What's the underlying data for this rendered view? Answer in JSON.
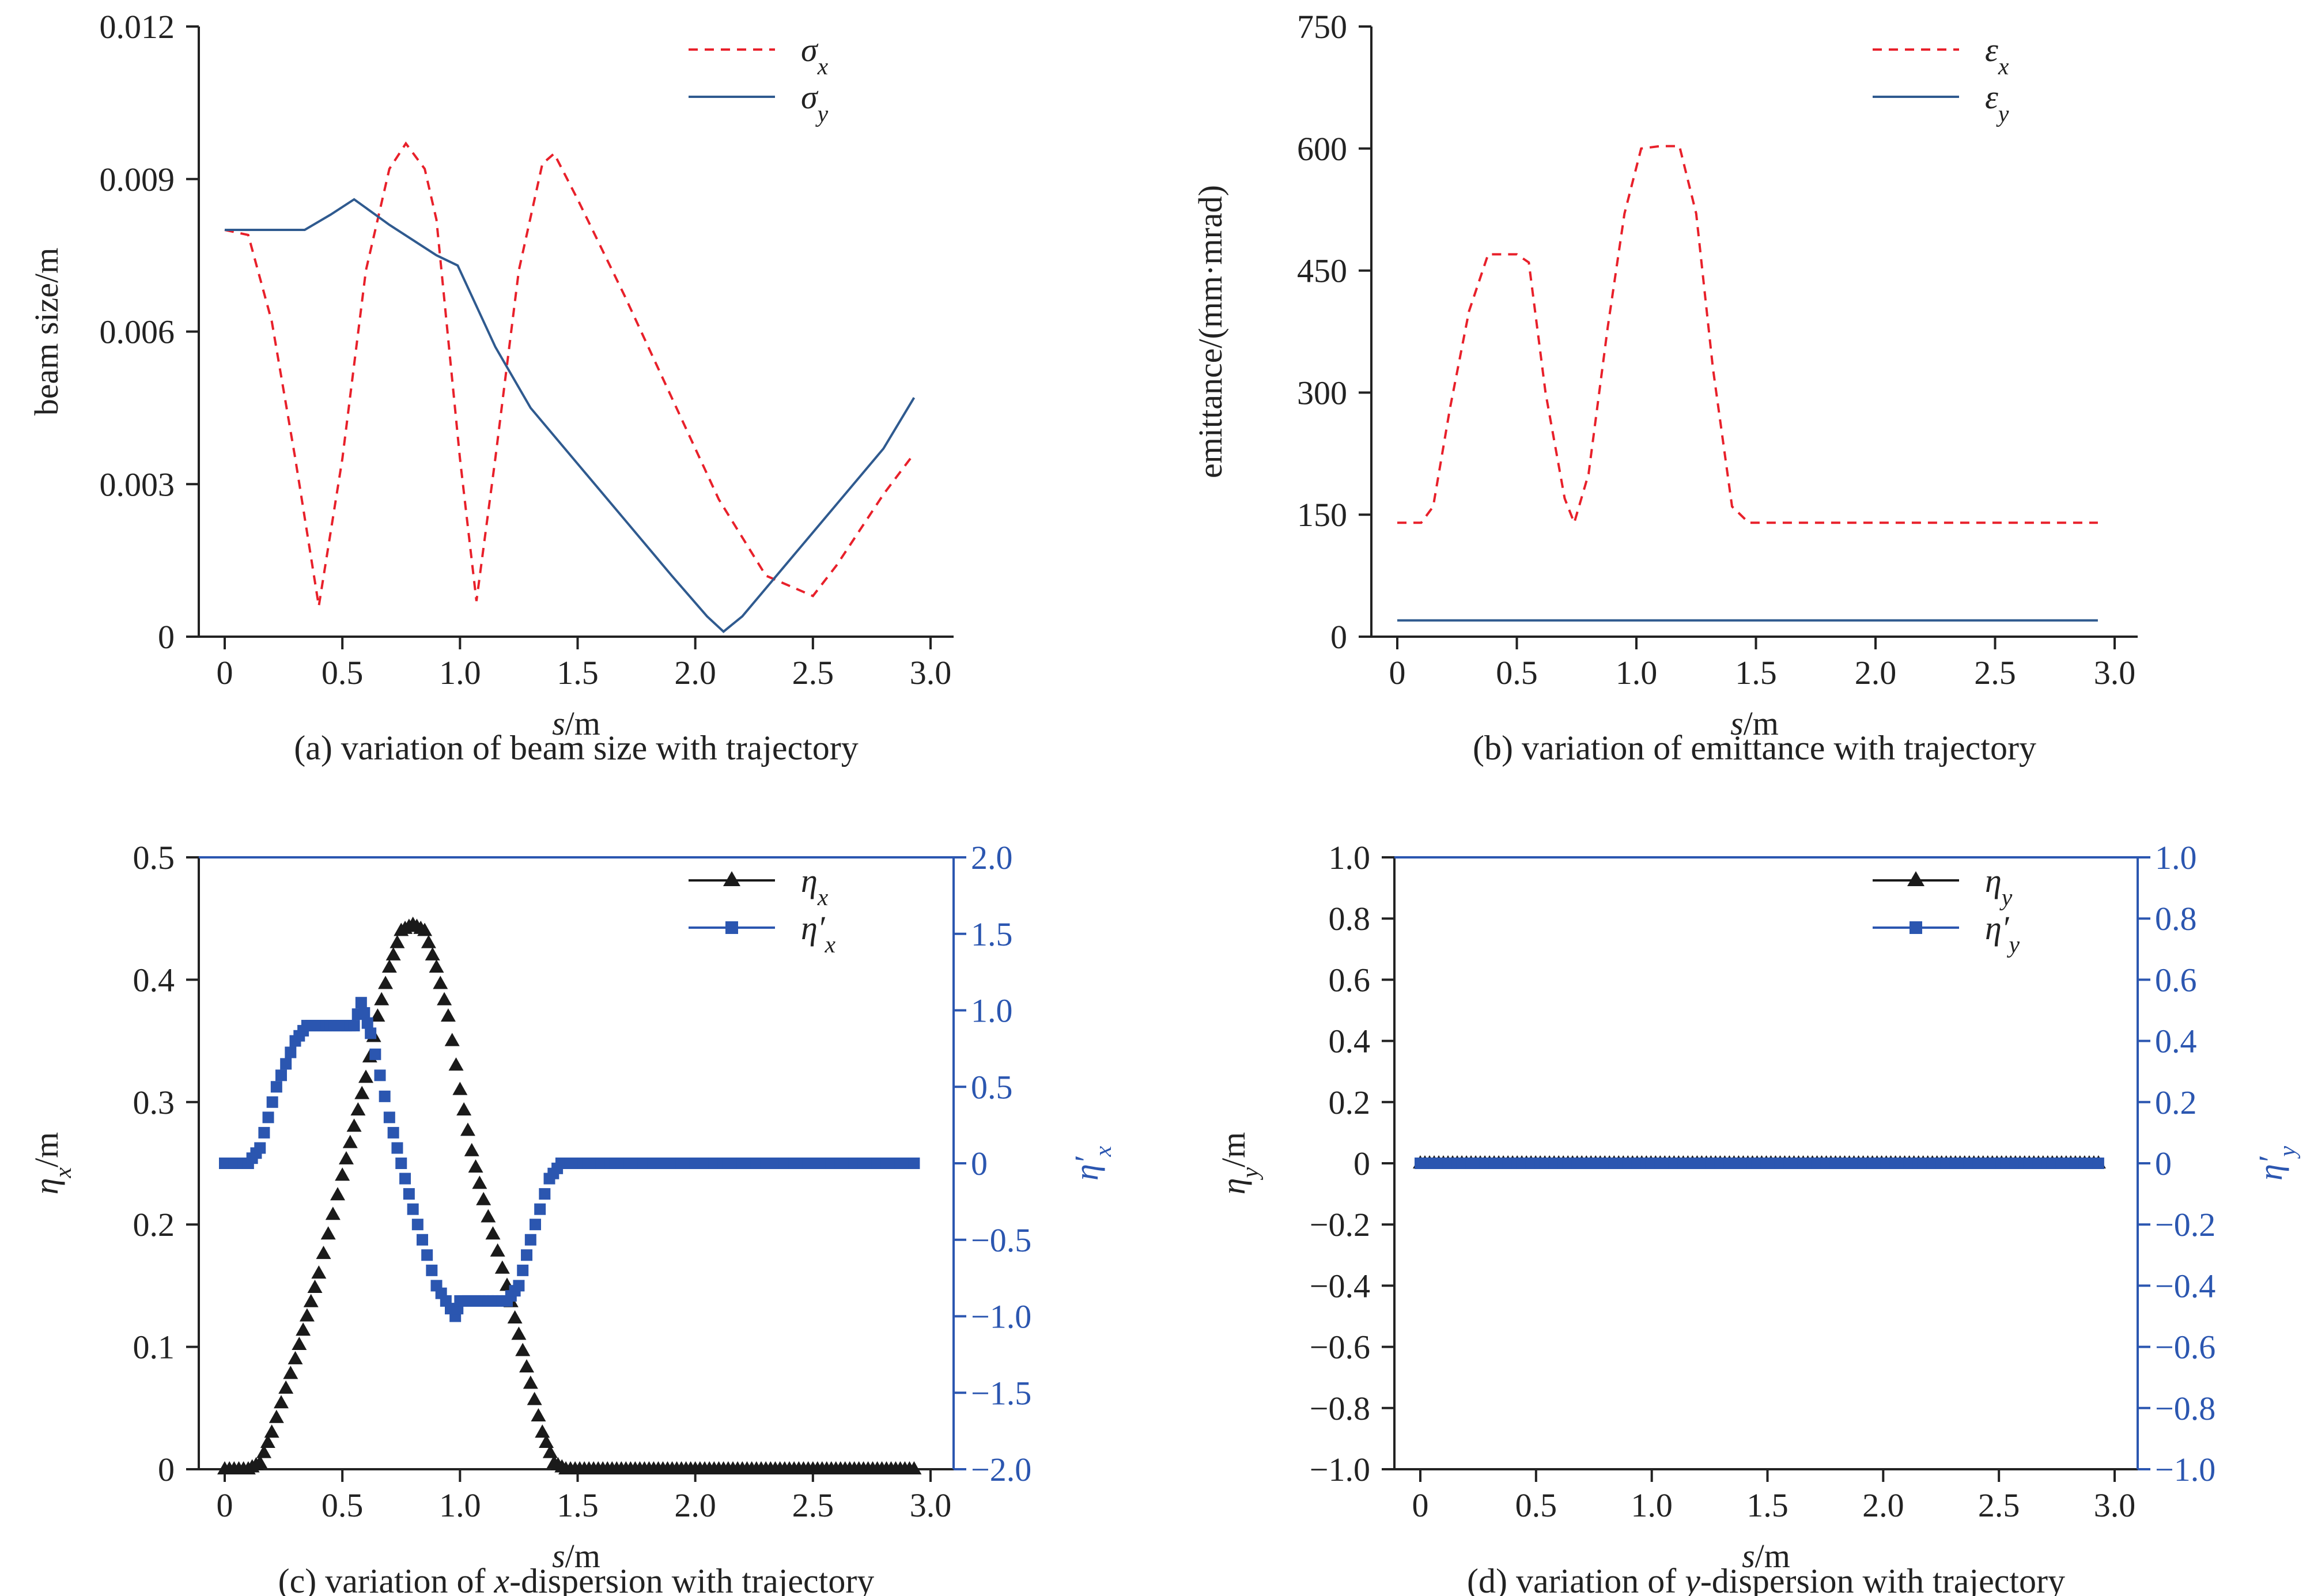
{
  "colors": {
    "sigma_x": "#e8202a",
    "sigma_y": "#2f5a8f",
    "eta": "#1a1a1a",
    "eta_prime": "#2b56b0",
    "axis": "#222222",
    "right_axis": "#2b56b0"
  },
  "chart_data": [
    {
      "id": "a",
      "type": "line",
      "caption": "(a) variation of beam size with trajectory",
      "xlabel_italic": "s",
      "xlabel_rest": "/m",
      "ylabel": "beam size/m",
      "xlim": [
        0,
        3.0
      ],
      "ylim": [
        0,
        0.012
      ],
      "xticks": [
        0,
        0.5,
        1.0,
        1.5,
        2.0,
        2.5,
        3.0
      ],
      "xtick_labels": [
        "0",
        "0.5",
        "1.0",
        "1.5",
        "2.0",
        "2.5",
        "3.0"
      ],
      "yticks": [
        0,
        0.003,
        0.006,
        0.009,
        0.012
      ],
      "ytick_labels": [
        "0",
        "0.003",
        "0.006",
        "0.009",
        "0.012"
      ],
      "legend": [
        {
          "symbol": "σ",
          "sub": "x",
          "style": "dashed"
        },
        {
          "symbol": "σ",
          "sub": "y",
          "style": "solid"
        }
      ],
      "series": [
        {
          "name": "σx",
          "style": "dashed",
          "x": [
            0,
            0.1,
            0.2,
            0.3,
            0.4,
            0.5,
            0.6,
            0.7,
            0.77,
            0.85,
            0.9,
            1.0,
            1.07,
            1.15,
            1.25,
            1.35,
            1.4,
            1.5,
            1.7,
            1.9,
            2.1,
            2.3,
            2.5,
            2.6,
            2.7,
            2.8,
            2.93
          ],
          "y": [
            0.008,
            0.0079,
            0.0062,
            0.0035,
            0.0006,
            0.0035,
            0.0072,
            0.0092,
            0.0097,
            0.0092,
            0.0082,
            0.0035,
            0.0007,
            0.0035,
            0.0072,
            0.0093,
            0.0095,
            0.0086,
            0.0067,
            0.0047,
            0.0027,
            0.0012,
            0.0008,
            0.0014,
            0.0021,
            0.0028,
            0.0036
          ]
        },
        {
          "name": "σy",
          "style": "solid",
          "x": [
            0,
            0.1,
            0.2,
            0.34,
            0.45,
            0.55,
            0.7,
            0.9,
            0.99,
            1.15,
            1.3,
            1.5,
            1.7,
            1.9,
            2.05,
            2.12,
            2.2,
            2.4,
            2.6,
            2.8,
            2.93
          ],
          "y": [
            0.008,
            0.008,
            0.008,
            0.008,
            0.0083,
            0.0086,
            0.0081,
            0.0075,
            0.0073,
            0.0057,
            0.0045,
            0.0034,
            0.0023,
            0.0012,
            0.0004,
            0.0001,
            0.0004,
            0.0015,
            0.0026,
            0.0037,
            0.0047
          ]
        }
      ]
    },
    {
      "id": "b",
      "type": "line",
      "caption": "(b) variation of emittance with trajectory",
      "xlabel_italic": "s",
      "xlabel_rest": "/m",
      "ylabel": "emittance/(mm·mrad)",
      "xlim": [
        0,
        3.0
      ],
      "ylim": [
        0,
        750
      ],
      "xticks": [
        0,
        0.5,
        1.0,
        1.5,
        2.0,
        2.5,
        3.0
      ],
      "xtick_labels": [
        "0",
        "0.5",
        "1.0",
        "1.5",
        "2.0",
        "2.5",
        "3.0"
      ],
      "yticks": [
        0,
        150,
        300,
        450,
        600,
        750
      ],
      "ytick_labels": [
        "0",
        "150",
        "300",
        "450",
        "600",
        "750"
      ],
      "legend": [
        {
          "symbol": "ε",
          "sub": "x",
          "style": "dashed"
        },
        {
          "symbol": "ε",
          "sub": "y",
          "style": "solid"
        }
      ],
      "series": [
        {
          "name": "εx",
          "style": "dashed",
          "x": [
            0,
            0.1,
            0.15,
            0.22,
            0.3,
            0.38,
            0.5,
            0.55,
            0.62,
            0.7,
            0.74,
            0.8,
            0.88,
            0.95,
            1.02,
            1.1,
            1.18,
            1.25,
            1.32,
            1.4,
            1.47,
            1.6,
            2.0,
            2.5,
            2.93
          ],
          "y": [
            140,
            140,
            160,
            280,
            400,
            470,
            470,
            460,
            300,
            170,
            140,
            200,
            380,
            520,
            600,
            603,
            603,
            520,
            330,
            160,
            140,
            140,
            140,
            140,
            140
          ]
        },
        {
          "name": "εy",
          "style": "solid",
          "x": [
            0,
            2.93
          ],
          "y": [
            20,
            20
          ]
        }
      ]
    },
    {
      "id": "c",
      "type": "scatter",
      "caption_before": "(c) variation of ",
      "caption_italic": "x",
      "caption_after": "-dispersion with trajectory",
      "xlabel_italic": "s",
      "xlabel_rest": "/m",
      "ylabel_symbol": "η",
      "ylabel_sub": "x",
      "ylabel_rest": "/m",
      "y2label_symbol": "η′",
      "y2label_sub": "x",
      "xlim": [
        0,
        3.0
      ],
      "ylim": [
        0,
        0.5
      ],
      "y2lim": [
        -2.0,
        2.0
      ],
      "xticks": [
        0,
        0.5,
        1.0,
        1.5,
        2.0,
        2.5,
        3.0
      ],
      "xtick_labels": [
        "0",
        "0.5",
        "1.0",
        "1.5",
        "2.0",
        "2.5",
        "3.0"
      ],
      "yticks": [
        0,
        0.1,
        0.2,
        0.3,
        0.4,
        0.5
      ],
      "ytick_labels": [
        "0",
        "0.1",
        "0.2",
        "0.3",
        "0.4",
        "0.5"
      ],
      "y2ticks": [
        -2.0,
        -1.5,
        -1.0,
        -0.5,
        0,
        0.5,
        1.0,
        1.5,
        2.0
      ],
      "y2tick_labels": [
        "−2.0",
        "−1.5",
        "−1.0",
        "−0.5",
        "0",
        "0.5",
        "1.0",
        "1.5",
        "2.0"
      ],
      "legend": [
        {
          "symbol": "η",
          "sub": "x",
          "marker": "triangle"
        },
        {
          "symbol": "η′",
          "sub": "x",
          "marker": "square"
        }
      ],
      "series": [
        {
          "name": "ηx",
          "marker": "triangle",
          "axis": "left",
          "x": [
            0,
            0.1,
            0.15,
            0.2,
            0.3,
            0.4,
            0.5,
            0.55,
            0.6,
            0.65,
            0.7,
            0.75,
            0.8,
            0.85,
            0.9,
            0.95,
            1.0,
            1.05,
            1.1,
            1.2,
            1.3,
            1.35,
            1.4,
            1.45,
            2.0,
            2.5,
            2.93
          ],
          "y": [
            0,
            0,
            0.005,
            0.03,
            0.09,
            0.16,
            0.24,
            0.28,
            0.32,
            0.37,
            0.41,
            0.44,
            0.445,
            0.44,
            0.41,
            0.37,
            0.31,
            0.26,
            0.22,
            0.15,
            0.07,
            0.03,
            0.005,
            0,
            0,
            0,
            0
          ]
        },
        {
          "name": "η′x",
          "marker": "square",
          "axis": "right",
          "x": [
            0,
            0.1,
            0.15,
            0.22,
            0.3,
            0.35,
            0.45,
            0.55,
            0.58,
            0.62,
            0.7,
            0.8,
            0.9,
            0.98,
            1.0,
            1.1,
            1.2,
            1.25,
            1.3,
            1.38,
            1.43,
            1.6,
            2.0,
            2.5,
            2.93
          ],
          "y": [
            0,
            0,
            0.1,
            0.5,
            0.8,
            0.9,
            0.9,
            0.9,
            1.05,
            0.85,
            0.3,
            -0.3,
            -0.8,
            -1.0,
            -0.9,
            -0.9,
            -0.9,
            -0.8,
            -0.5,
            -0.1,
            0,
            0,
            0,
            0,
            0
          ]
        }
      ]
    },
    {
      "id": "d",
      "type": "scatter",
      "caption_before": "(d) variation of ",
      "caption_italic": "y",
      "caption_after": "-dispersion with trajectory",
      "xlabel_italic": "s",
      "xlabel_rest": "/m",
      "ylabel_symbol": "η",
      "ylabel_sub": "y",
      "ylabel_rest": "/m",
      "y2label_symbol": "η′",
      "y2label_sub": "y",
      "xlim": [
        0,
        3.0
      ],
      "ylim": [
        -1.0,
        1.0
      ],
      "y2lim": [
        -1.0,
        1.0
      ],
      "xticks": [
        0,
        0.5,
        1.0,
        1.5,
        2.0,
        2.5,
        3.0
      ],
      "xtick_labels": [
        "0",
        "0.5",
        "1.0",
        "1.5",
        "2.0",
        "2.5",
        "3.0"
      ],
      "yticks": [
        -1.0,
        -0.8,
        -0.6,
        -0.4,
        -0.2,
        0,
        0.2,
        0.4,
        0.6,
        0.8,
        1.0
      ],
      "ytick_labels": [
        "−1.0",
        "−0.8",
        "−0.6",
        "−0.4",
        "−0.2",
        "0",
        "0.2",
        "0.4",
        "0.6",
        "0.8",
        "1.0"
      ],
      "y2ticks": [
        -1.0,
        -0.8,
        -0.6,
        -0.4,
        -0.2,
        0,
        0.2,
        0.4,
        0.6,
        0.8,
        1.0
      ],
      "y2tick_labels": [
        "−1.0",
        "−0.8",
        "−0.6",
        "−0.4",
        "−0.2",
        "0",
        "0.2",
        "0.4",
        "0.6",
        "0.8",
        "1.0"
      ],
      "legend": [
        {
          "symbol": "η",
          "sub": "y",
          "marker": "triangle"
        },
        {
          "symbol": "η′",
          "sub": "y",
          "marker": "square"
        }
      ],
      "series": [
        {
          "name": "ηy",
          "marker": "triangle",
          "axis": "left",
          "x": [
            0,
            2.93
          ],
          "y": [
            0,
            0
          ]
        },
        {
          "name": "η′y",
          "marker": "square",
          "axis": "right",
          "x": [
            0,
            2.93
          ],
          "y": [
            0,
            0
          ]
        }
      ]
    }
  ]
}
